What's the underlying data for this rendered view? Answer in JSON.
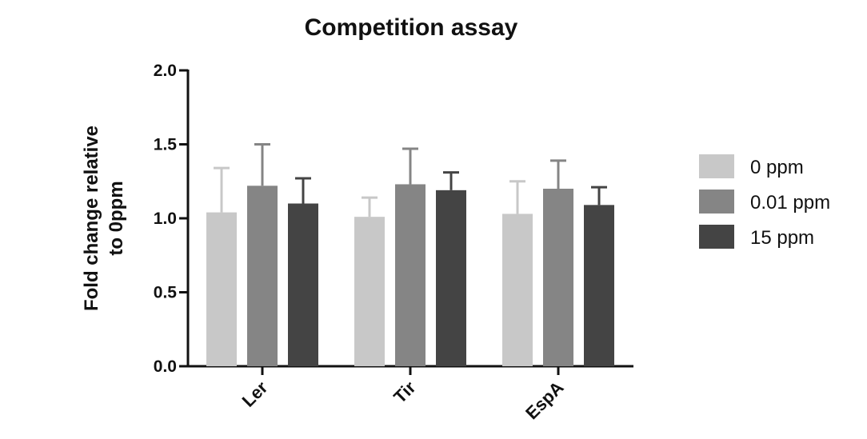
{
  "chart_data": {
    "type": "bar",
    "title": "Competition assay",
    "xlabel": "",
    "ylabel": "Fold change relative to 0ppm",
    "ylabel_lines": [
      "Fold change relative",
      "to 0ppm"
    ],
    "ylim": [
      0,
      2.0
    ],
    "yticks": [
      0.0,
      0.5,
      1.0,
      1.5,
      2.0
    ],
    "ytick_labels": [
      "0.0",
      "0.5",
      "1.0",
      "1.5",
      "2.0"
    ],
    "categories": [
      "Ler",
      "Tir",
      "EspA"
    ],
    "series": [
      {
        "name": "0 ppm",
        "color": "#c8c8c8",
        "values": [
          1.04,
          1.01,
          1.03
        ],
        "errors": [
          0.3,
          0.13,
          0.22
        ]
      },
      {
        "name": "0.01 ppm",
        "color": "#858585",
        "values": [
          1.22,
          1.23,
          1.2
        ],
        "errors": [
          0.28,
          0.24,
          0.19
        ]
      },
      {
        "name": "15 ppm",
        "color": "#444444",
        "values": [
          1.1,
          1.19,
          1.09
        ],
        "errors": [
          0.17,
          0.12,
          0.12
        ]
      }
    ],
    "error_bars": "one-sided (upper)",
    "grid": false,
    "legend_position": "right"
  }
}
